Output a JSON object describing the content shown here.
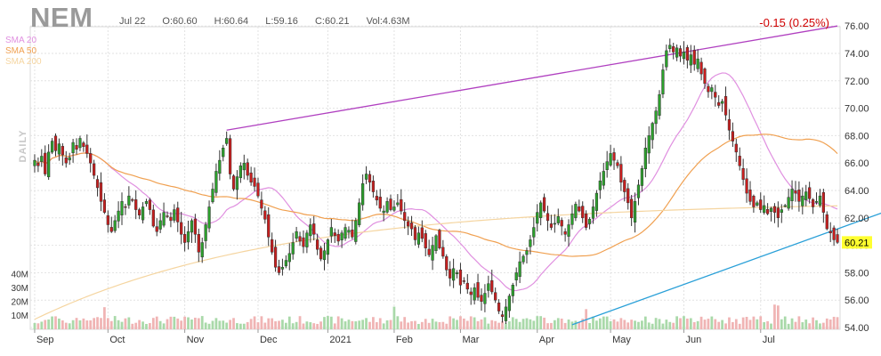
{
  "header": {
    "symbol": "NEM",
    "date": "Jul 22",
    "open": "O:60.60",
    "high": "H:60.64",
    "low": "L:59.16",
    "close": "C:60.21",
    "volume": "Vol:4.63M",
    "change": "-0.15 (0.25%)",
    "period": "DAILY"
  },
  "legend": [
    {
      "label": "SMA 20",
      "color": "#e090e0"
    },
    {
      "label": "SMA 50",
      "color": "#f0a050"
    },
    {
      "label": "SMA 200",
      "color": "#f5d5a0"
    }
  ],
  "colors": {
    "up": "#2ca02c",
    "down": "#c81e1e",
    "upVol": "#a9d9a9",
    "downVol": "#f0b4b4",
    "trendUpper": "#b040c0",
    "trendLower": "#2aa0d8",
    "lastPriceBg": "#ffff30"
  },
  "chart_data": {
    "type": "candlestick",
    "x_axis_labels": [
      "Sep",
      "Oct",
      "Nov",
      "Dec",
      "2021",
      "Feb",
      "Mar",
      "Apr",
      "May",
      "Jun",
      "Jul"
    ],
    "y_axis_ticks": [
      54,
      56,
      58,
      60,
      62,
      64,
      66,
      68,
      70,
      72,
      74,
      76
    ],
    "ylim": [
      54,
      77
    ],
    "volume_ticks": [
      "10M",
      "20M",
      "30M",
      "40M"
    ],
    "last_price": "60.21",
    "trendlines": [
      {
        "name": "upper",
        "from_day": 55,
        "from_value": 68.4,
        "to_day": 230,
        "to_value": 76.0
      },
      {
        "name": "lower",
        "from_day": 154,
        "from_value": 54.2,
        "to_day": 254,
        "to_value": 63.4
      }
    ],
    "month_start_days": [
      0,
      21,
      43,
      64,
      84,
      103,
      122,
      144,
      165,
      186,
      208
    ],
    "closes": [
      66.2,
      65.8,
      66.5,
      65.2,
      66.8,
      67.6,
      66.9,
      67.4,
      66.6,
      66.0,
      66.4,
      67.5,
      67.0,
      67.8,
      67.2,
      66.7,
      66.0,
      65.1,
      64.2,
      63.2,
      62.4,
      61.5,
      61.0,
      61.8,
      62.5,
      63.2,
      62.8,
      63.6,
      63.3,
      62.6,
      62.2,
      62.8,
      63.2,
      62.6,
      61.4,
      61.0,
      61.8,
      62.4,
      62.1,
      61.8,
      62.6,
      61.7,
      60.8,
      60.2,
      61.0,
      61.8,
      60.8,
      59.5,
      60.2,
      61.5,
      62.8,
      64.1,
      65.4,
      66.2,
      67.1,
      67.8,
      65.2,
      64.1,
      65.0,
      65.8,
      66.0,
      65.1,
      64.6,
      64.3,
      63.6,
      62.7,
      61.9,
      60.6,
      59.5,
      58.4,
      58.0,
      58.4,
      58.9,
      59.4,
      60.2,
      61.0,
      60.3,
      59.9,
      60.9,
      61.5,
      60.8,
      59.7,
      59.0,
      59.6,
      60.4,
      61.3,
      60.7,
      60.3,
      60.9,
      61.3,
      61.1,
      60.6,
      61.8,
      63.1,
      64.5,
      65.2,
      64.6,
      63.9,
      63.3,
      62.7,
      62.5,
      63.2,
      62.6,
      62.8,
      63.1,
      62.5,
      61.8,
      61.4,
      61.2,
      60.4,
      60.9,
      60.5,
      59.8,
      59.3,
      60.0,
      60.7,
      59.8,
      59.2,
      58.2,
      57.6,
      58.3,
      58.0,
      57.1,
      57.4,
      56.8,
      56.4,
      56.9,
      56.2,
      55.9,
      56.5,
      57.2,
      56.6,
      56.0,
      55.2,
      54.8,
      55.5,
      56.3,
      57.1,
      58.0,
      58.8,
      59.2,
      59.6,
      60.4,
      61.3,
      62.4,
      63.1,
      62.5,
      61.8,
      61.3,
      61.6,
      62.1,
      61.4,
      60.8,
      61.5,
      62.3,
      63.0,
      62.5,
      62.0,
      61.3,
      61.9,
      62.8,
      63.8,
      64.7,
      65.4,
      66.1,
      66.7,
      66.2,
      65.8,
      64.6,
      63.9,
      63.1,
      62.0,
      63.2,
      64.4,
      65.6,
      67.1,
      68.0,
      68.9,
      69.8,
      71.0,
      72.8,
      74.2,
      74.6,
      74.1,
      74.4,
      73.8,
      74.1,
      73.5,
      73.9,
      73.2,
      73.6,
      72.5,
      71.8,
      71.2,
      71.5,
      70.8,
      70.2,
      70.5,
      69.5,
      68.4,
      67.6,
      66.8,
      65.8,
      64.8,
      63.8,
      63.2,
      62.8,
      63.1,
      62.6,
      62.9,
      62.3,
      62.7,
      62.4,
      62.0,
      62.6,
      62.9,
      63.5,
      64.1,
      63.8,
      63.2,
      63.6,
      63.9,
      63.4,
      62.8,
      63.2,
      63.6,
      62.4,
      61.2,
      60.9,
      60.4,
      60.21
    ]
  }
}
